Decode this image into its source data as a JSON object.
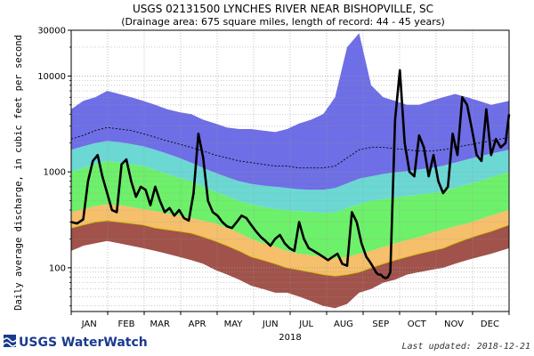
{
  "title": "USGS 02131500 LYNCHES RIVER NEAR BISHOPVILLE, SC",
  "subtitle": "(Drainage area: 675 square miles, length of record: 44 - 45 years)",
  "ylabel": "Daily average discharge, in cubic feet per second",
  "logo": "USGS WaterWatch",
  "last_updated": "Last updated: 2018-12-21",
  "colors": {
    "low": "#a0524b",
    "p10_25": "#f5bf6b",
    "p25_75": "#6df06a",
    "p75_90": "#6bd8d4",
    "high": "#6e6ee6",
    "flow": "#000000",
    "min_line": "#d4c000"
  },
  "chart_data": {
    "type": "area",
    "title": "USGS 02131500 LYNCHES RIVER NEAR BISHOPVILLE, SC",
    "subtitle": "(Drainage area: 675 square miles, length of record: 44 - 45 years)",
    "xlabel": "2018",
    "ylabel": "Daily average discharge, in cubic feet per second",
    "yscale": "log",
    "ylim": [
      35,
      30000
    ],
    "xlim": [
      0,
      365
    ],
    "yticks": [
      100,
      1000,
      10000,
      30000
    ],
    "ytick_labels": [
      "100",
      "1000",
      "10000",
      "30000"
    ],
    "months": [
      "JAN",
      "FEB",
      "MAR",
      "APR",
      "MAY",
      "JUN",
      "JUL",
      "AUG",
      "SEP",
      "OCT",
      "NOV",
      "DEC"
    ],
    "month_days": [
      15,
      46,
      74,
      105,
      135,
      166,
      196,
      227,
      258,
      288,
      319,
      349
    ],
    "grid": true,
    "day": [
      0,
      10,
      20,
      30,
      40,
      50,
      60,
      70,
      80,
      90,
      100,
      110,
      120,
      130,
      140,
      150,
      160,
      170,
      180,
      190,
      200,
      210,
      220,
      230,
      240,
      250,
      260,
      270,
      280,
      290,
      300,
      310,
      320,
      330,
      340,
      350,
      365
    ],
    "bands": {
      "min": [
        150,
        170,
        180,
        190,
        180,
        170,
        160,
        150,
        140,
        130,
        120,
        110,
        95,
        85,
        75,
        65,
        60,
        55,
        55,
        50,
        45,
        40,
        38,
        42,
        55,
        60,
        70,
        75,
        85,
        90,
        95,
        100,
        110,
        120,
        130,
        140,
        160
      ],
      "p10": [
        260,
        280,
        300,
        310,
        300,
        290,
        280,
        260,
        250,
        240,
        230,
        210,
        190,
        170,
        150,
        130,
        120,
        110,
        100,
        95,
        90,
        85,
        82,
        85,
        90,
        100,
        110,
        120,
        130,
        140,
        150,
        160,
        180,
        200,
        220,
        240,
        280
      ],
      "p25": [
        380,
        410,
        440,
        460,
        450,
        430,
        410,
        390,
        370,
        350,
        330,
        310,
        290,
        260,
        230,
        200,
        180,
        165,
        150,
        140,
        135,
        130,
        125,
        130,
        140,
        150,
        165,
        180,
        195,
        210,
        230,
        250,
        270,
        290,
        320,
        350,
        400
      ],
      "p75": [
        1000,
        1100,
        1200,
        1300,
        1250,
        1200,
        1150,
        1050,
        950,
        870,
        800,
        700,
        620,
        560,
        500,
        460,
        430,
        410,
        400,
        390,
        380,
        370,
        380,
        420,
        460,
        500,
        520,
        540,
        560,
        580,
        600,
        630,
        680,
        740,
        800,
        880,
        1000
      ],
      "p90": [
        1700,
        1850,
        2000,
        2100,
        2050,
        1950,
        1850,
        1700,
        1550,
        1400,
        1250,
        1100,
        980,
        880,
        800,
        750,
        720,
        700,
        680,
        660,
        650,
        650,
        680,
        760,
        850,
        900,
        950,
        990,
        1020,
        1060,
        1100,
        1160,
        1250,
        1350,
        1450,
        1550,
        1700
      ],
      "max": [
        4500,
        5500,
        6000,
        7000,
        6500,
        6000,
        5500,
        5000,
        4500,
        4200,
        4000,
        3500,
        3200,
        2900,
        2800,
        2800,
        2700,
        2600,
        2800,
        3200,
        3500,
        4000,
        6000,
        20000,
        28000,
        8000,
        6000,
        5500,
        5000,
        5000,
        5500,
        6000,
        6500,
        6000,
        5500,
        5000,
        5500
      ]
    },
    "series": [
      {
        "name": "",
        "x": [
          0,
          5,
          10,
          14,
          18,
          22,
          26,
          30,
          34,
          38,
          42,
          46,
          50,
          54,
          58,
          62,
          66,
          70,
          74,
          78,
          82,
          86,
          90,
          94,
          98,
          102,
          106,
          110,
          114,
          118,
          122,
          126,
          130,
          134,
          138,
          142,
          146,
          150,
          154,
          158,
          162,
          166,
          170,
          174,
          178,
          182,
          186,
          190,
          194,
          198,
          202,
          206,
          210,
          214,
          218,
          222,
          226,
          230,
          234,
          238,
          242,
          246,
          248,
          250,
          252,
          254,
          256,
          258,
          260,
          262,
          264,
          266,
          270,
          274,
          278,
          282,
          286,
          290,
          294,
          298,
          302,
          306,
          310,
          314,
          318,
          322,
          326,
          330,
          334,
          338,
          342,
          346,
          350,
          354,
          358,
          362,
          365
        ],
        "y": [
          300,
          290,
          320,
          800,
          1300,
          1500,
          900,
          600,
          400,
          380,
          1200,
          1350,
          800,
          550,
          700,
          650,
          450,
          700,
          500,
          380,
          420,
          350,
          400,
          330,
          310,
          600,
          2500,
          1400,
          500,
          380,
          350,
          300,
          270,
          260,
          300,
          350,
          330,
          280,
          240,
          210,
          190,
          170,
          200,
          220,
          180,
          160,
          150,
          300,
          200,
          160,
          150,
          140,
          130,
          120,
          130,
          140,
          110,
          105,
          380,
          300,
          180,
          130,
          120,
          110,
          100,
          90,
          85,
          85,
          80,
          78,
          80,
          90,
          3500,
          11500,
          2000,
          1000,
          900,
          2400,
          1800,
          900,
          1500,
          800,
          600,
          700,
          2500,
          1500,
          6000,
          5000,
          2800,
          1500,
          1300,
          4500,
          1500,
          2200,
          1800,
          2000,
          4000
        ]
      },
      {
        "name": "",
        "x": [
          0,
          10,
          20,
          30,
          40,
          50,
          60,
          70,
          80,
          90,
          100,
          110,
          120,
          130,
          140,
          150,
          160,
          170,
          180,
          190,
          200,
          210,
          220,
          230,
          240,
          250,
          260,
          270,
          280,
          290,
          300,
          310,
          320,
          330,
          340,
          350,
          365
        ],
        "y": [
          2200,
          2400,
          2700,
          2900,
          2800,
          2700,
          2500,
          2300,
          2100,
          1950,
          1800,
          1650,
          1500,
          1400,
          1300,
          1250,
          1200,
          1150,
          1150,
          1100,
          1100,
          1100,
          1150,
          1400,
          1700,
          1800,
          1800,
          1750,
          1700,
          1650,
          1650,
          1700,
          1800,
          1900,
          2000,
          2100,
          2300
        ]
      }
    ]
  }
}
